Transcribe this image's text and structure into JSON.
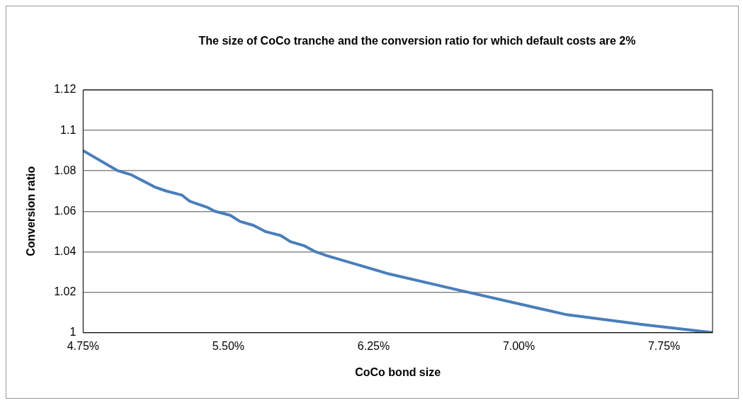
{
  "chart_data": {
    "type": "line",
    "title": "The size of CoCo tranche and the conversion ratio for which default costs are 2%",
    "xlabel": "CoCo bond size",
    "ylabel": "Conversion ratio",
    "x": [
      4.75,
      4.93,
      5.0,
      5.06,
      5.12,
      5.18,
      5.26,
      5.3,
      5.39,
      5.43,
      5.51,
      5.56,
      5.63,
      5.69,
      5.77,
      5.82,
      5.89,
      5.95,
      6.01,
      6.33,
      6.69,
      7.24,
      7.64,
      8.0
    ],
    "series": [
      {
        "color": "#4a7ebb",
        "values": [
          1.09,
          1.08,
          1.078,
          1.075,
          1.072,
          1.07,
          1.068,
          1.065,
          1.062,
          1.06,
          1.058,
          1.055,
          1.053,
          1.05,
          1.048,
          1.045,
          1.043,
          1.04,
          1.038,
          1.029,
          1.021,
          1.009,
          1.004,
          1.0
        ]
      }
    ],
    "xlim": [
      4.75,
      8.0
    ],
    "xticks": [
      {
        "value": 4.75,
        "label": "4.75%"
      },
      {
        "value": 5.5,
        "label": "5.50%"
      },
      {
        "value": 6.25,
        "label": "6.25%"
      },
      {
        "value": 7.0,
        "label": "7.00%"
      },
      {
        "value": 7.75,
        "label": "7.75%"
      }
    ],
    "ylim": [
      1,
      1.12
    ],
    "yticks": [
      1,
      1.02,
      1.04,
      1.06,
      1.08,
      1.1,
      1.12
    ],
    "grid": "y",
    "legend": false,
    "marker": "none",
    "line_style": "solid"
  }
}
